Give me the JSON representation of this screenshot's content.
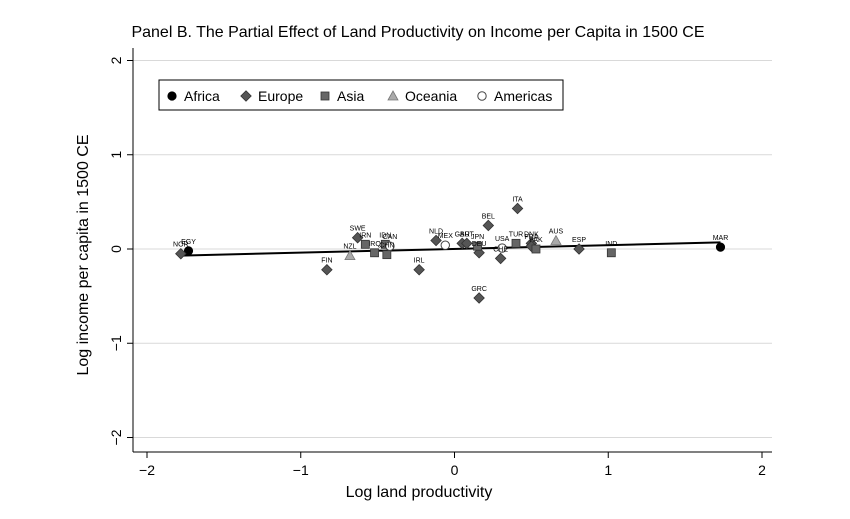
{
  "chart_data": {
    "type": "scatter",
    "title": "Panel B. The Partial Effect of Land Productivity on Income per Capita in 1500 CE",
    "xlabel": "Log land productivity",
    "ylabel": "Log income per capita in 1500 CE",
    "xlim": [
      -2.1,
      2.1
    ],
    "ylim": [
      -2.1,
      2.1
    ],
    "xticks": [
      -2,
      -1,
      0,
      1,
      2
    ],
    "yticks": [
      -2,
      -1,
      0,
      1,
      2
    ],
    "xtick_labels": [
      "−2",
      "−1",
      "0",
      "1",
      "2"
    ],
    "ytick_labels": [
      "−2",
      "−1",
      "0",
      "1",
      "2"
    ],
    "grid": "horizontal",
    "legend_position": "top-left",
    "colors": {
      "africa": "#000000",
      "marker_fill": "#555555",
      "asia": "#666666",
      "oceania": "#aaaaaa",
      "americas": "#ffffff",
      "grid": "#d9d9d9"
    },
    "series": [
      {
        "name": "Africa",
        "marker": "circle-filled",
        "points": [
          {
            "label": "EGY",
            "x": -1.73,
            "y": -0.02
          },
          {
            "label": "MAR",
            "x": 1.73,
            "y": 0.02
          }
        ]
      },
      {
        "name": "Europe",
        "marker": "diamond",
        "points": [
          {
            "label": "NOR",
            "x": -1.78,
            "y": -0.05
          },
          {
            "label": "FIN",
            "x": -0.83,
            "y": -0.22
          },
          {
            "label": "SWE",
            "x": -0.63,
            "y": 0.12
          },
          {
            "label": "IRL",
            "x": -0.23,
            "y": -0.22
          },
          {
            "label": "NLD",
            "x": -0.12,
            "y": 0.09
          },
          {
            "label": "GBR",
            "x": 0.05,
            "y": 0.06
          },
          {
            "label": "AUT",
            "x": 0.08,
            "y": 0.06
          },
          {
            "label": "DEU",
            "x": 0.16,
            "y": -0.04
          },
          {
            "label": "GRC",
            "x": 0.16,
            "y": -0.52
          },
          {
            "label": "BEL",
            "x": 0.22,
            "y": 0.25
          },
          {
            "label": "CHE",
            "x": 0.3,
            "y": -0.1
          },
          {
            "label": "ITA",
            "x": 0.41,
            "y": 0.43
          },
          {
            "label": "DNK",
            "x": 0.5,
            "y": 0.06
          },
          {
            "label": "FRA",
            "x": 0.5,
            "y": 0.03
          },
          {
            "label": "ESP",
            "x": 0.81,
            "y": 0.0
          }
        ]
      },
      {
        "name": "Asia",
        "marker": "square",
        "points": [
          {
            "label": "IRN",
            "x": -0.58,
            "y": 0.05
          },
          {
            "label": "IRQ",
            "x": -0.52,
            "y": -0.04
          },
          {
            "label": "IDN",
            "x": -0.45,
            "y": 0.05
          },
          {
            "label": "CHN",
            "x": -0.44,
            "y": -0.06
          },
          {
            "label": "JPN",
            "x": 0.15,
            "y": 0.03
          },
          {
            "label": "TUR",
            "x": 0.4,
            "y": 0.06
          },
          {
            "label": "PAK",
            "x": 0.53,
            "y": 0.0
          },
          {
            "label": "IND",
            "x": 1.02,
            "y": -0.04
          }
        ]
      },
      {
        "name": "Oceania",
        "marker": "triangle",
        "points": [
          {
            "label": "NZL",
            "x": -0.68,
            "y": -0.07
          },
          {
            "label": "AUS",
            "x": 0.66,
            "y": 0.09
          }
        ]
      },
      {
        "name": "Americas",
        "marker": "circle-hollow",
        "points": [
          {
            "label": "CAN",
            "x": -0.42,
            "y": 0.03
          },
          {
            "label": "MEX",
            "x": -0.06,
            "y": 0.04
          },
          {
            "label": "USA",
            "x": 0.31,
            "y": 0.01
          }
        ]
      }
    ],
    "fit_line": {
      "x": [
        -1.78,
        1.73
      ],
      "y": [
        -0.07,
        0.07
      ]
    }
  }
}
